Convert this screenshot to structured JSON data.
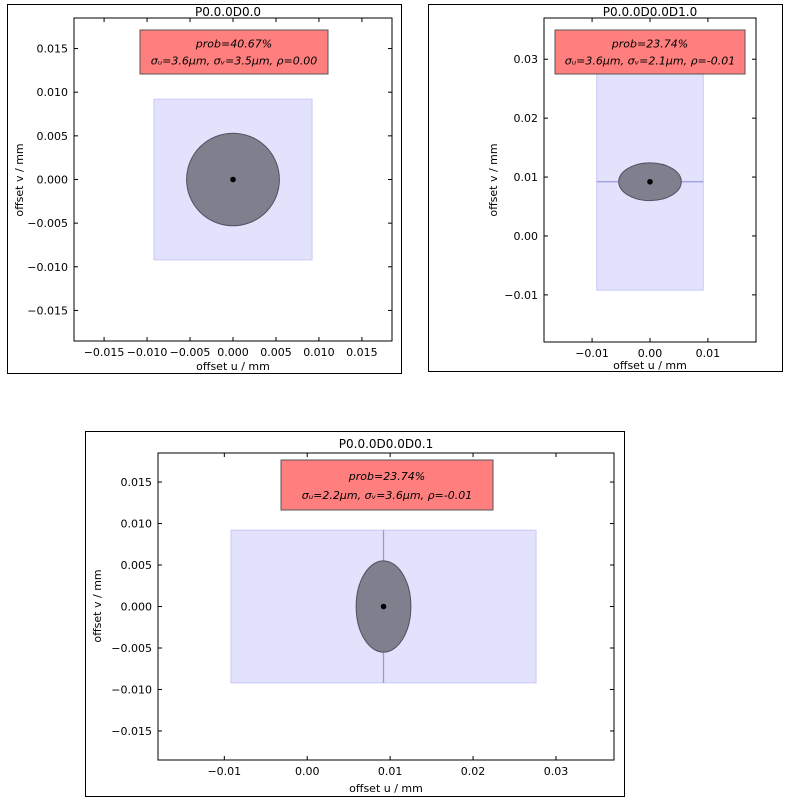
{
  "chart_data": [
    {
      "type": "scatter",
      "title": "P0.0.0D0.0",
      "xlabel": "offset u / mm",
      "ylabel": "offset v / mm",
      "xlim": [
        -0.0185,
        0.0185
      ],
      "ylim": [
        -0.0185,
        0.0185
      ],
      "xticks": [
        -0.015,
        -0.01,
        -0.005,
        0.0,
        0.005,
        0.01,
        0.015
      ],
      "xtick_labels": [
        "−0.015",
        "−0.010",
        "−0.005",
        "0.000",
        "0.005",
        "0.010",
        "0.015"
      ],
      "yticks": [
        0.015,
        0.01,
        0.005,
        0.0,
        -0.005,
        -0.01,
        -0.015
      ],
      "ytick_labels": [
        "0.015",
        "0.010",
        "0.005",
        "0.000",
        "−0.005",
        "−0.010",
        "−0.015"
      ],
      "rect": {
        "x0": -0.0092,
        "x1": 0.0092,
        "y0": -0.0092,
        "y1": 0.0092
      },
      "ellipse": {
        "cx": 0.0,
        "cy": 0.0,
        "rx": 0.0054,
        "ry": 0.0053
      },
      "point": {
        "x": 0.0,
        "y": 0.0
      },
      "cross": false,
      "info": {
        "line1": "prob=40.67%",
        "line2": "σᵤ=3.6μm, σᵥ=3.5μm, ρ=0.00"
      },
      "colors": {
        "rect": "#e2e2fd",
        "rect_edge": "#c8c8f5",
        "ellipse": "#7f7f8e",
        "ellipse_edge": "#505060",
        "info_bg": "#ff7f7f",
        "cross": "#9898e0"
      }
    },
    {
      "type": "scatter",
      "title": "P0.0.0D0.0D1.0",
      "xlabel": "offset u / mm",
      "ylabel": "offset v / mm",
      "xlim": [
        -0.0183,
        0.0183
      ],
      "ylim": [
        -0.018,
        0.037
      ],
      "xticks": [
        -0.01,
        0.0,
        0.01
      ],
      "xtick_labels": [
        "−0.01",
        "0.00",
        "0.01"
      ],
      "yticks": [
        0.03,
        0.02,
        0.01,
        0.0,
        -0.01
      ],
      "ytick_labels": [
        "0.03",
        "0.02",
        "0.01",
        "0.00",
        "−0.01"
      ],
      "rect": {
        "x0": -0.0092,
        "x1": 0.0092,
        "y0": -0.0092,
        "y1": 0.0276
      },
      "ellipse": {
        "cx": 0.0,
        "cy": 0.0092,
        "rx": 0.0054,
        "ry": 0.0032
      },
      "point": {
        "x": 0.0,
        "y": 0.0092
      },
      "cross": true,
      "info": {
        "line1": "prob=23.74%",
        "line2": "σᵤ=3.6μm, σᵥ=2.1μm, ρ=-0.01"
      },
      "colors": {
        "rect": "#e2e2fd",
        "rect_edge": "#c8c8f5",
        "ellipse": "#7f7f8e",
        "ellipse_edge": "#505060",
        "info_bg": "#ff7f7f",
        "cross": "#9898e0"
      }
    },
    {
      "type": "scatter",
      "title": "P0.0.0D0.0D0.1",
      "xlabel": "offset u / mm",
      "ylabel": "offset v / mm",
      "xlim": [
        -0.018,
        0.037
      ],
      "ylim": [
        -0.0185,
        0.0185
      ],
      "xticks": [
        -0.01,
        0.0,
        0.01,
        0.02,
        0.03
      ],
      "xtick_labels": [
        "−0.01",
        "0.00",
        "0.01",
        "0.02",
        "0.03"
      ],
      "yticks": [
        0.015,
        0.01,
        0.005,
        0.0,
        -0.005,
        -0.01,
        -0.015
      ],
      "ytick_labels": [
        "0.015",
        "0.010",
        "0.005",
        "0.000",
        "−0.005",
        "−0.010",
        "−0.015"
      ],
      "rect": {
        "x0": -0.0092,
        "x1": 0.0276,
        "y0": -0.0092,
        "y1": 0.0092
      },
      "ellipse": {
        "cx": 0.0092,
        "cy": 0.0,
        "rx": 0.0033,
        "ry": 0.0055
      },
      "point": {
        "x": 0.0092,
        "y": 0.0
      },
      "cross": true,
      "info": {
        "line1": "prob=23.74%",
        "line2": "σᵤ=2.2μm, σᵥ=3.6μm, ρ=-0.01"
      },
      "colors": {
        "rect": "#e2e2fd",
        "rect_edge": "#c8c8f5",
        "ellipse": "#7f7f8e",
        "ellipse_edge": "#505060",
        "info_bg": "#ff7f7f",
        "cross": "#9898e0"
      }
    }
  ]
}
